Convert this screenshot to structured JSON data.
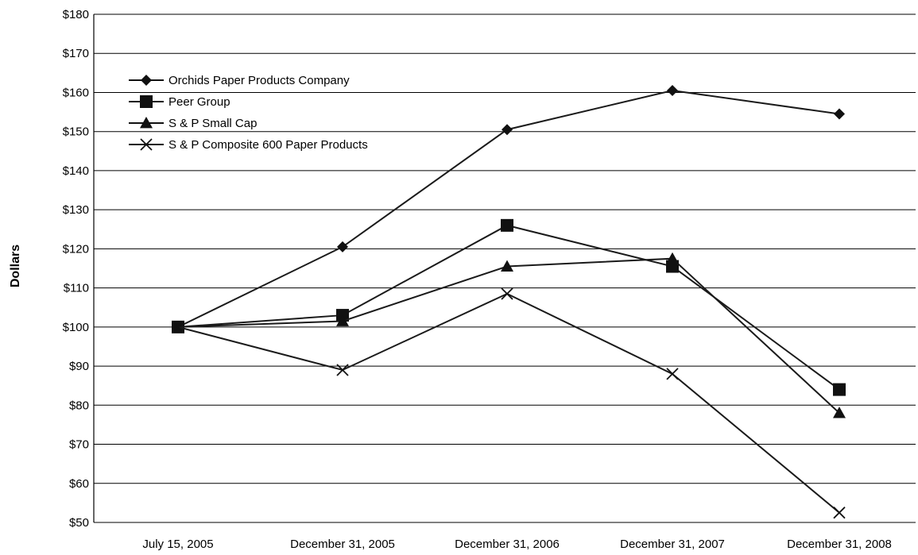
{
  "chart_data": {
    "type": "line",
    "title": "",
    "xlabel": "",
    "ylabel": "Dollars",
    "ylim": [
      50,
      180
    ],
    "yticks": [
      50,
      60,
      70,
      80,
      90,
      100,
      110,
      120,
      130,
      140,
      150,
      160,
      170,
      180
    ],
    "ytick_prefix": "$",
    "grid": true,
    "legend_position": "top-left",
    "categories": [
      "July 15, 2005",
      "December 31, 2005",
      "December 31, 2006",
      "December 31, 2007",
      "December 31, 2008"
    ],
    "series": [
      {
        "name": "Orchids Paper Products Company",
        "marker": "diamond",
        "values": [
          100,
          120.5,
          150.5,
          160.5,
          154.5
        ]
      },
      {
        "name": "Peer Group",
        "marker": "square",
        "values": [
          100,
          103,
          126,
          115.5,
          84
        ]
      },
      {
        "name": "S & P Small Cap",
        "marker": "triangle",
        "values": [
          100,
          101.5,
          115.5,
          117.5,
          78
        ]
      },
      {
        "name": "S & P Composite 600 Paper Products",
        "marker": "x",
        "values": [
          100,
          89,
          108.5,
          88,
          52.5
        ]
      }
    ]
  }
}
